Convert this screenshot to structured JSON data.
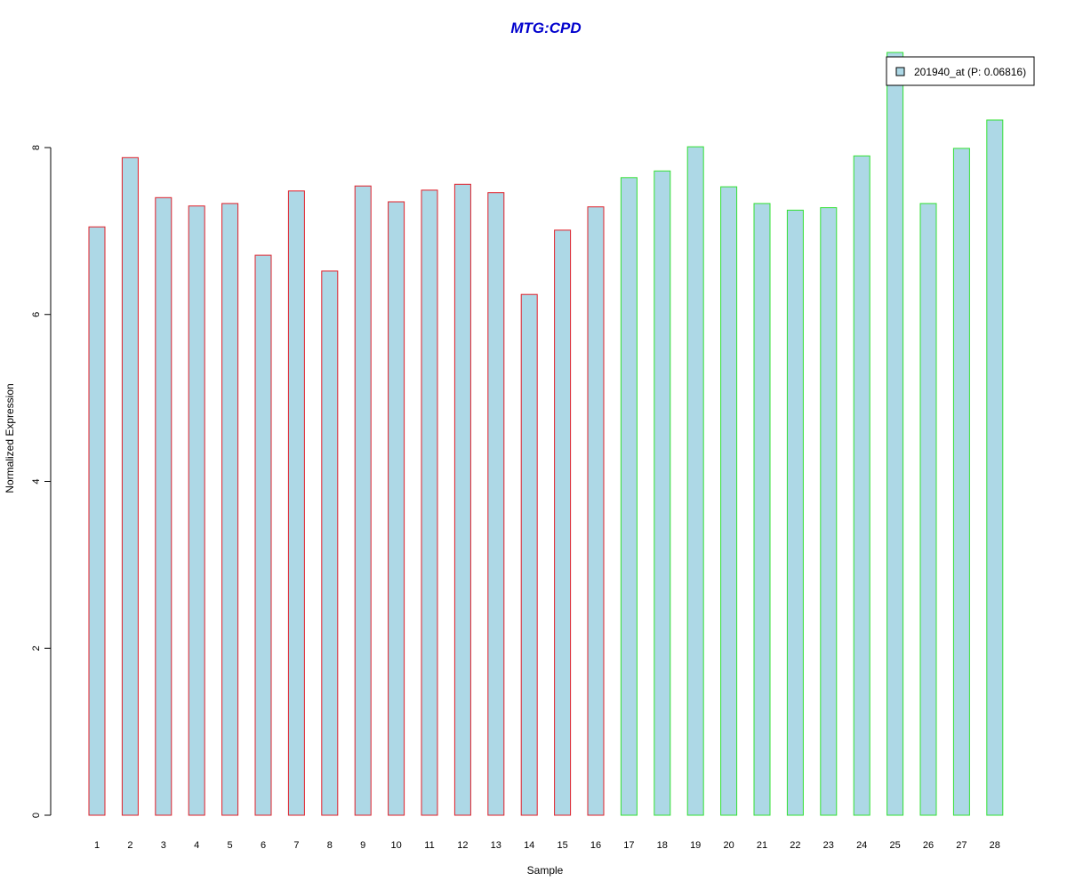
{
  "chart_data": {
    "type": "bar",
    "title": "MTG:CPD",
    "xlabel": "Sample",
    "ylabel": "Normalized Expression",
    "ylim": [
      0,
      9.3
    ],
    "yticks": [
      0,
      2,
      4,
      6,
      8
    ],
    "categories": [
      "1",
      "2",
      "3",
      "4",
      "5",
      "6",
      "7",
      "8",
      "9",
      "10",
      "11",
      "12",
      "13",
      "14",
      "15",
      "16",
      "17",
      "18",
      "19",
      "20",
      "21",
      "22",
      "23",
      "24",
      "25",
      "26",
      "27",
      "28"
    ],
    "series": [
      {
        "name": "201940_at (P: 0.06816)",
        "values": [
          7.05,
          7.88,
          7.4,
          7.3,
          7.33,
          6.71,
          7.48,
          6.52,
          7.54,
          7.35,
          7.49,
          7.56,
          7.46,
          6.24,
          7.01,
          7.29,
          7.64,
          7.72,
          8.01,
          7.53,
          7.33,
          7.25,
          7.28,
          7.9,
          9.14,
          7.33,
          7.99,
          8.33
        ]
      }
    ],
    "group_borders": [
      "#e0202a",
      "#e0202a",
      "#e0202a",
      "#e0202a",
      "#e0202a",
      "#e0202a",
      "#e0202a",
      "#e0202a",
      "#e0202a",
      "#e0202a",
      "#e0202a",
      "#e0202a",
      "#e0202a",
      "#e0202a",
      "#e0202a",
      "#e0202a",
      "#33e033",
      "#33e033",
      "#33e033",
      "#33e033",
      "#33e033",
      "#33e033",
      "#33e033",
      "#33e033",
      "#33e033",
      "#33e033",
      "#33e033",
      "#33e033"
    ],
    "bar_fill": "#add8e6",
    "title_color": "#0000cd",
    "grid": false,
    "legend_position": "top-right"
  }
}
